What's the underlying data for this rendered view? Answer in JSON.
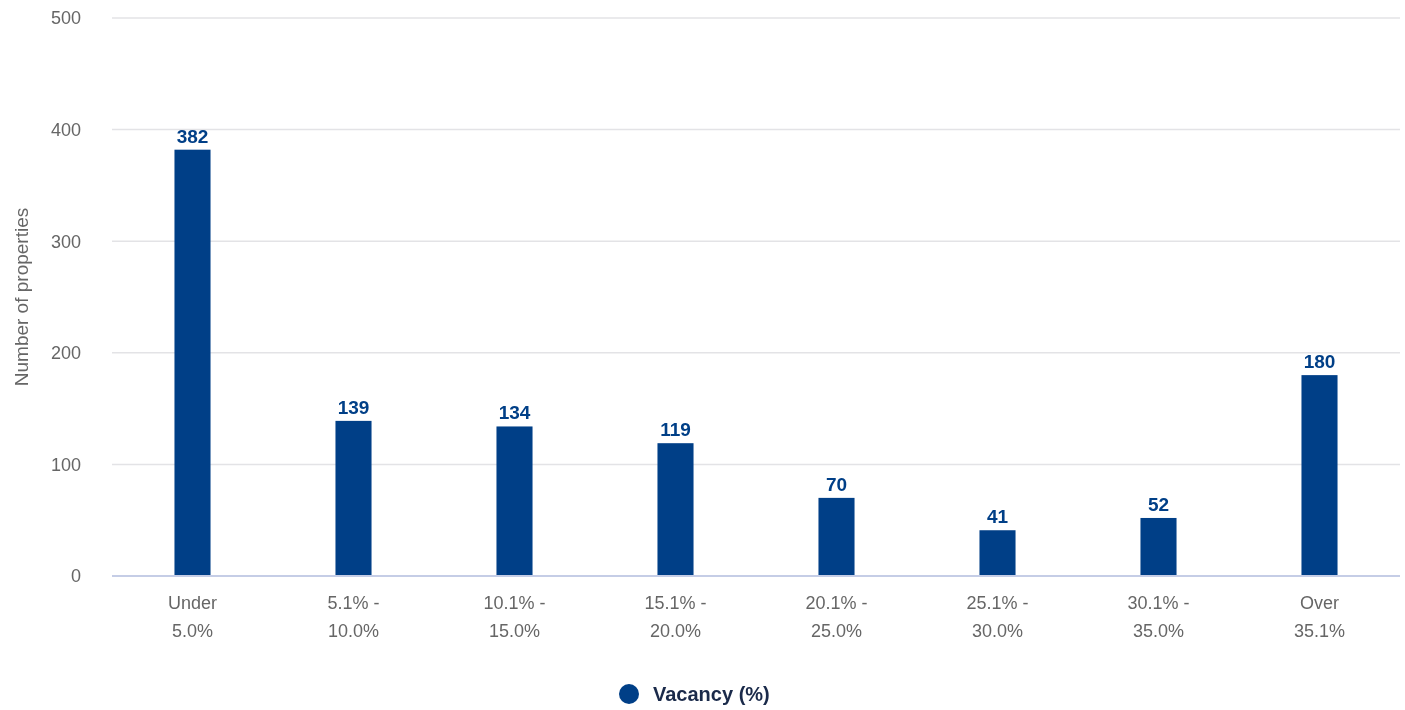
{
  "chart_data": {
    "type": "bar",
    "ylabel": "Number of properties",
    "categories": [
      "Under 5.0%",
      "5.1% - 10.0%",
      "10.1% - 15.0%",
      "15.1% - 20.0%",
      "20.1% - 25.0%",
      "25.1% - 30.0%",
      "30.1% - 35.0%",
      "Over 35.1%"
    ],
    "series": [
      {
        "name": "Vacancy (%)",
        "color": "#003f87",
        "values": [
          382,
          139,
          134,
          119,
          70,
          41,
          52,
          180
        ]
      }
    ],
    "ylim": [
      0,
      500
    ],
    "yticks": [
      0,
      100,
      200,
      300,
      400,
      500
    ],
    "grid": "y",
    "legend": "bottom",
    "data_labels": true
  }
}
